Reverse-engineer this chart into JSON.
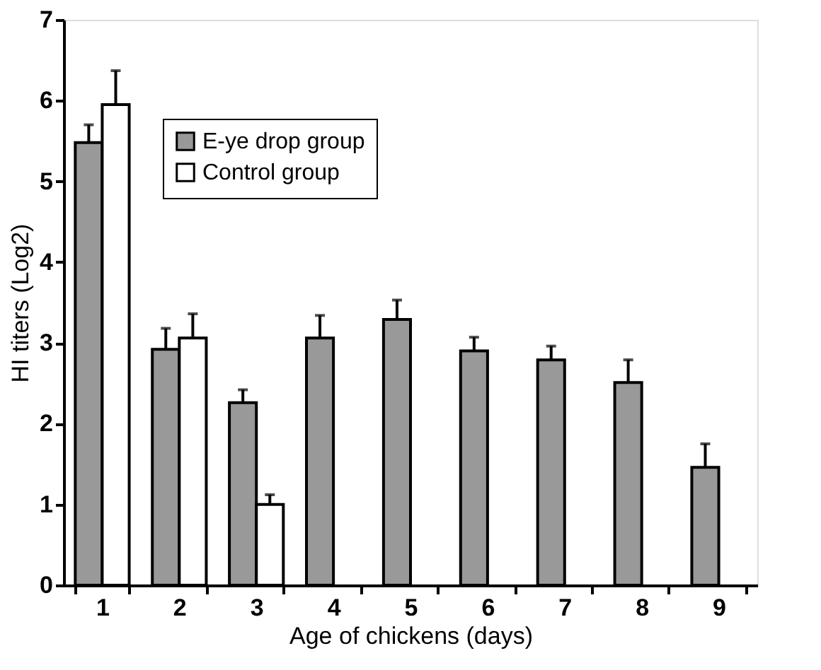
{
  "chart_data": {
    "type": "bar",
    "xlabel": "Age of chickens (days)",
    "ylabel": "HI titers (Log2)",
    "categories": [
      "1",
      "2",
      "3",
      "4",
      "5",
      "6",
      "7",
      "8",
      "9"
    ],
    "series": [
      {
        "name": "E-ye drop group",
        "color": "#999999",
        "values": [
          5.48,
          2.92,
          2.26,
          3.06,
          3.29,
          2.9,
          2.79,
          2.51,
          1.46
        ],
        "errors": [
          [
            5.48,
            5.7
          ],
          [
            2.92,
            3.18
          ],
          [
            2.26,
            2.42
          ],
          [
            3.06,
            3.34
          ],
          [
            3.29,
            3.53
          ],
          [
            2.9,
            3.07
          ],
          [
            2.79,
            2.96
          ],
          [
            2.51,
            2.79
          ],
          [
            1.46,
            1.75
          ]
        ]
      },
      {
        "name": "Control group",
        "color": "#ffffff",
        "values": [
          5.95,
          3.06,
          1.0,
          null,
          null,
          null,
          null,
          null,
          null
        ],
        "errors": [
          [
            5.95,
            6.37
          ],
          [
            3.06,
            3.36
          ],
          [
            1.0,
            1.12
          ],
          null,
          null,
          null,
          null,
          null,
          null
        ]
      }
    ],
    "ylim": [
      0,
      7
    ],
    "yticks": [
      0,
      1,
      2,
      3,
      4,
      5,
      6,
      7
    ],
    "grid": false,
    "legend": "top left"
  }
}
